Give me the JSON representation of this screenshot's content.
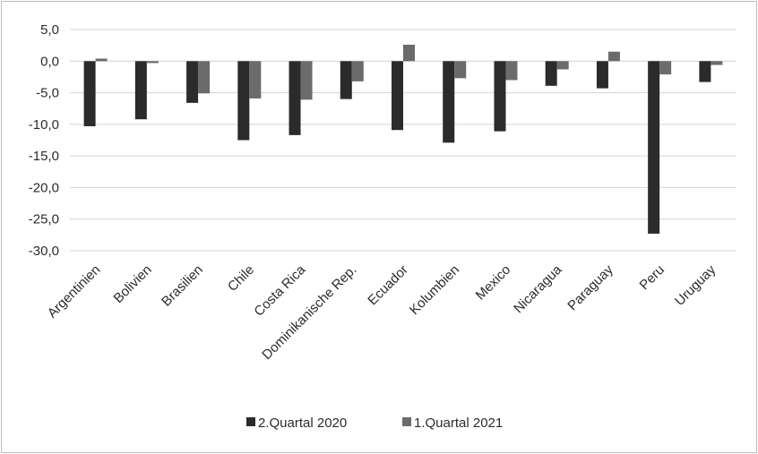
{
  "chart_data": {
    "type": "bar",
    "title": "",
    "xlabel": "",
    "ylabel": "",
    "ylim": [
      -30,
      5
    ],
    "yticks": [
      "5,0",
      "0,0",
      "-5,0",
      "-10,0",
      "-15,0",
      "-20,0",
      "-25,0",
      "-30,0"
    ],
    "ytick_values": [
      5,
      0,
      -5,
      -10,
      -15,
      -20,
      -25,
      -30
    ],
    "grid": true,
    "legend_position": "bottom",
    "categories": [
      "Argentinien",
      "Bolivien",
      "Brasilien",
      "Chile",
      "Costa Rica",
      "Dominikanische Rep.",
      "Ecuador",
      "Kolumbien",
      "Mexico",
      "Nicaragua",
      "Paraguay",
      "Peru",
      "Uruguay"
    ],
    "series": [
      {
        "name": "2.Quartal 2020",
        "color": "#2b2b2b",
        "values": [
          -10.3,
          -9.2,
          -6.6,
          -12.5,
          -11.7,
          -6.0,
          -10.9,
          -12.9,
          -11.1,
          -3.9,
          -4.3,
          -27.3,
          -3.3
        ]
      },
      {
        "name": "1.Quartal 2021",
        "color": "#6b6b6b",
        "values": [
          0.4,
          -0.3,
          -5.1,
          -5.9,
          -6.1,
          -3.2,
          2.6,
          -2.7,
          -3.0,
          -1.3,
          1.5,
          -2.1,
          -0.6
        ]
      }
    ]
  }
}
